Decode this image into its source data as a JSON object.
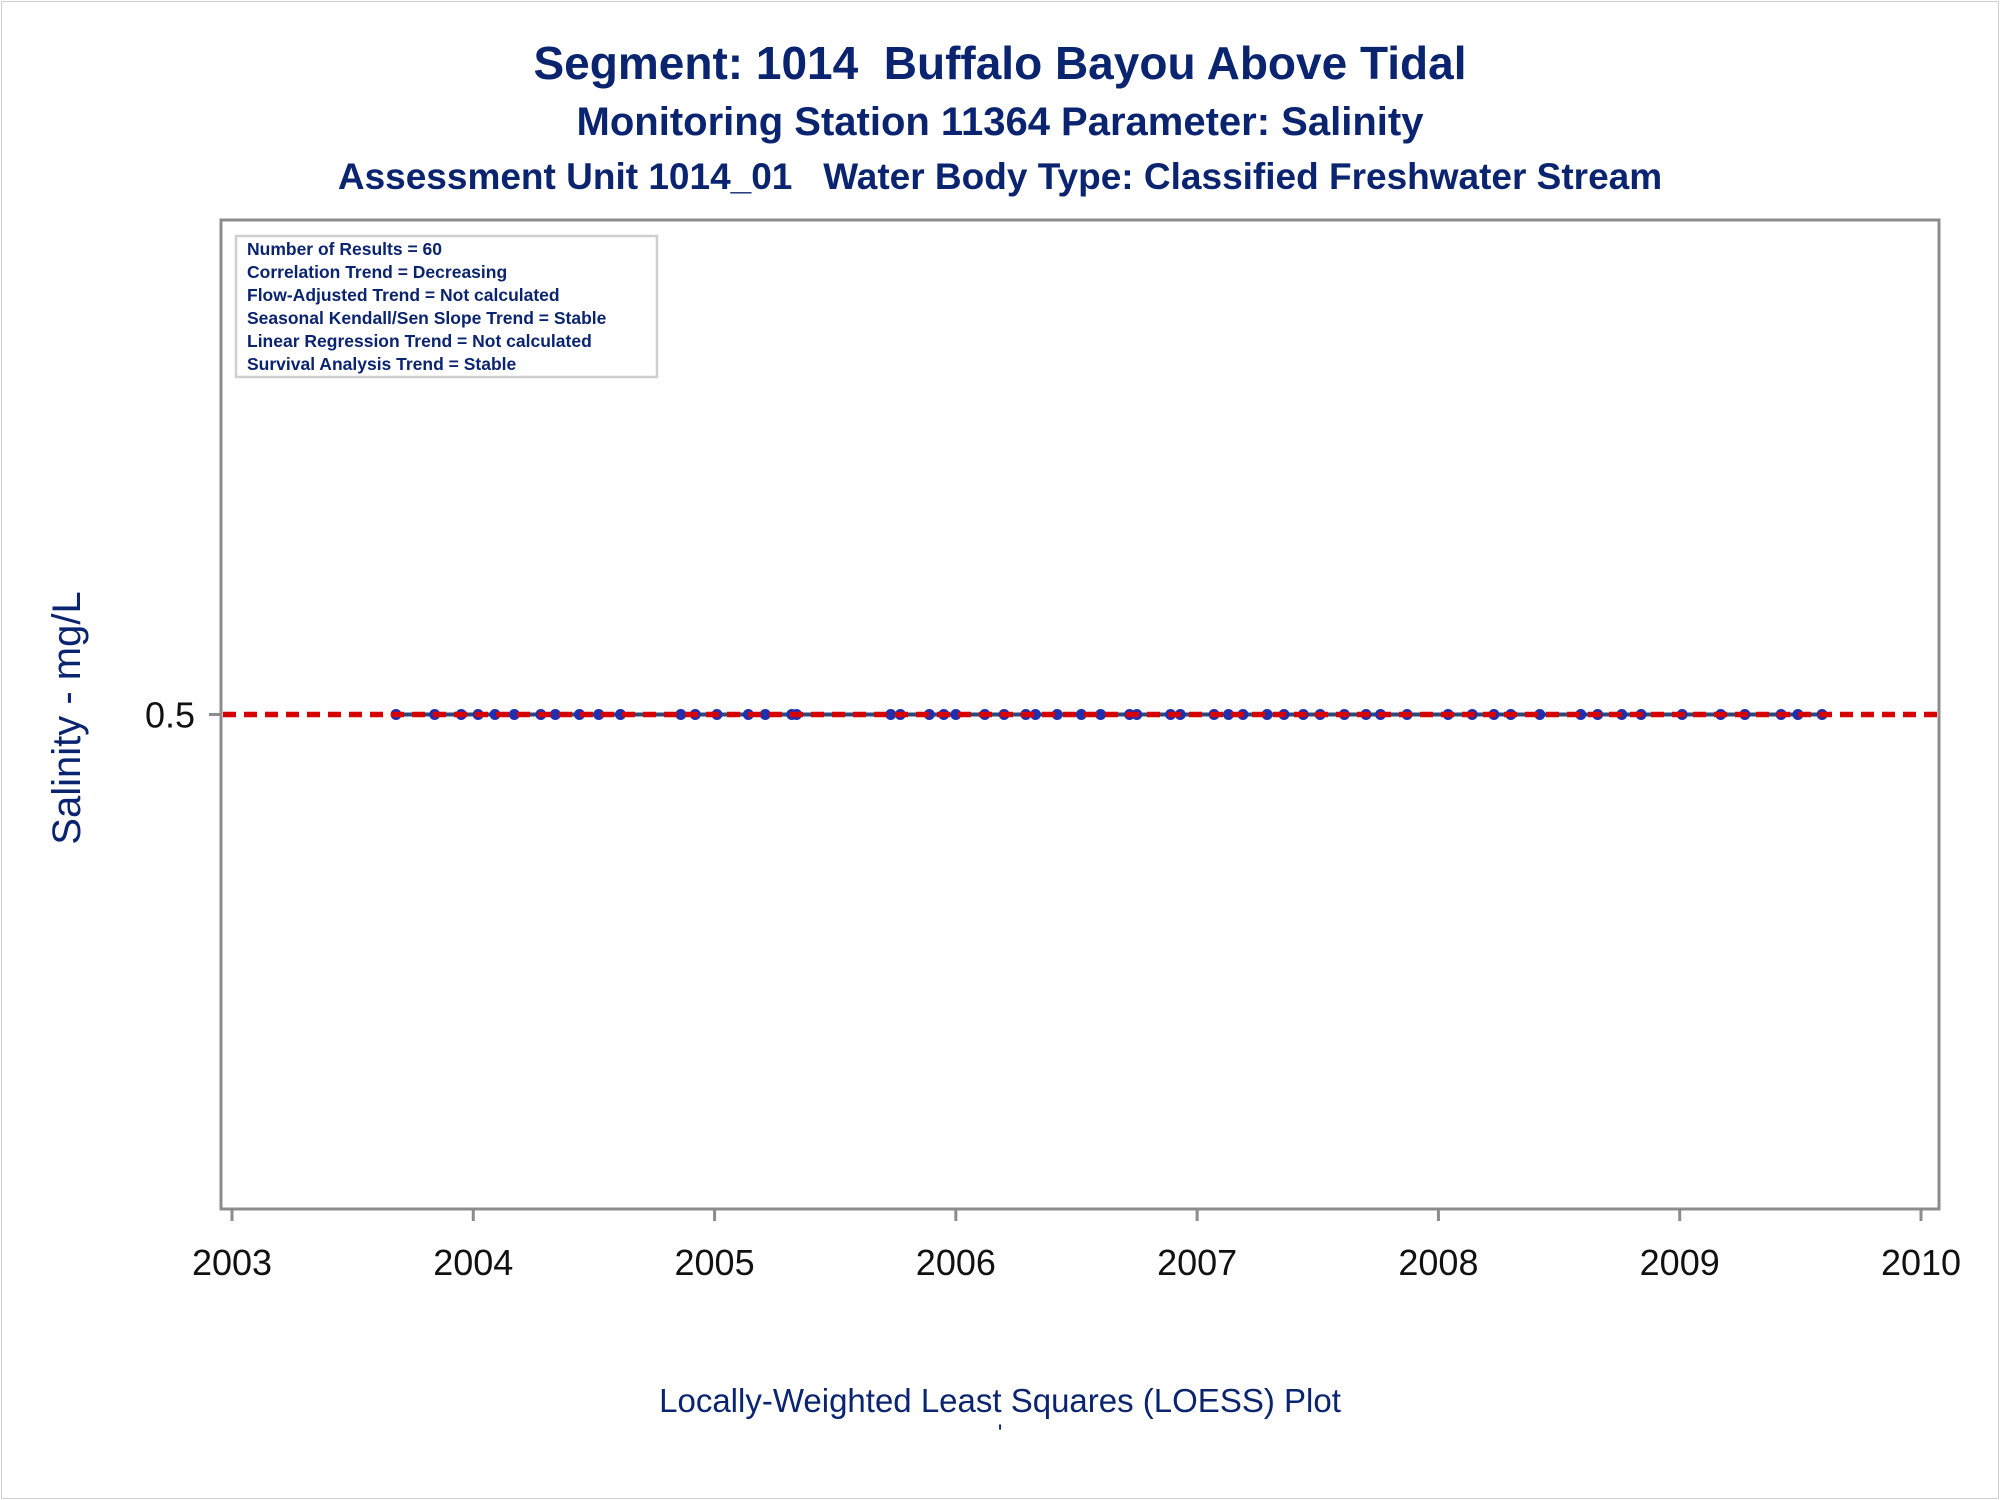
{
  "titles": {
    "line1": "Segment: 1014  Buffalo Bayou Above Tidal",
    "line2": "Monitoring Station 11364 Parameter: Salinity",
    "line3": "Assessment Unit 1014_01   Water Body Type: Classified Freshwater Stream"
  },
  "footnotes": {
    "line1": "Locally-Weighted Least Squares (LOESS) Plot",
    "line2": "'"
  },
  "colors": {
    "text": "#0b2470",
    "points": "#1f2fb0",
    "loess_line": "#2a4a7a",
    "reference_line": "#d60000",
    "frame": "#8c8c8c"
  },
  "chart_data": {
    "type": "scatter",
    "title": "Segment: 1014  Buffalo Bayou Above Tidal",
    "xlabel": "",
    "ylabel": "Salinity - mg/L",
    "xlim": [
      2003,
      2010
    ],
    "x_ticks": [
      "2003",
      "2004",
      "2005",
      "2006",
      "2007",
      "2008",
      "2009",
      "2010"
    ],
    "y_ticks": [
      "0.5"
    ],
    "y_tick_values": [
      0.5
    ],
    "ylim": [
      0.0,
      1.0
    ],
    "grid": false,
    "legend_placement": "top-left",
    "stats_box": [
      "Number of Results = 60",
      "Correlation Trend = Decreasing",
      "Flow-Adjusted Trend = Not calculated",
      "Seasonal Kendall/Sen Slope Trend = Stable",
      "Linear Regression Trend = Not calculated",
      "Survival Analysis Trend = Stable"
    ],
    "reference_line": {
      "y": 0.5,
      "style": "dashed",
      "color": "#d60000"
    },
    "loess_line": {
      "y": 0.5
    },
    "series": [
      {
        "marker": "dot",
        "x": [
          2003.68,
          2003.84,
          2003.95,
          2004.02,
          2004.09,
          2004.17,
          2004.28,
          2004.34,
          2004.44,
          2004.52,
          2004.61,
          2004.86,
          2004.92,
          2005.01,
          2005.14,
          2005.21,
          2005.32,
          2005.34,
          2005.73,
          2005.77,
          2005.89,
          2005.95,
          2006.0,
          2006.12,
          2006.2,
          2006.29,
          2006.33,
          2006.42,
          2006.52,
          2006.6,
          2006.72,
          2006.75,
          2006.89,
          2006.93,
          2007.07,
          2007.13,
          2007.19,
          2007.29,
          2007.36,
          2007.44,
          2007.51,
          2007.61,
          2007.7,
          2007.76,
          2007.87,
          2008.04,
          2008.14,
          2008.23,
          2008.3,
          2008.42,
          2008.59,
          2008.66,
          2008.76,
          2008.84,
          2009.01,
          2009.17,
          2009.27,
          2009.42,
          2009.49,
          2009.59
        ],
        "y": [
          0.5,
          0.5,
          0.5,
          0.5,
          0.5,
          0.5,
          0.5,
          0.5,
          0.5,
          0.5,
          0.5,
          0.5,
          0.5,
          0.5,
          0.5,
          0.5,
          0.5,
          0.5,
          0.5,
          0.5,
          0.5,
          0.5,
          0.5,
          0.5,
          0.5,
          0.5,
          0.5,
          0.5,
          0.5,
          0.5,
          0.5,
          0.5,
          0.5,
          0.5,
          0.5,
          0.5,
          0.5,
          0.5,
          0.5,
          0.5,
          0.5,
          0.5,
          0.5,
          0.5,
          0.5,
          0.5,
          0.5,
          0.5,
          0.5,
          0.5,
          0.5,
          0.5,
          0.5,
          0.5,
          0.5,
          0.5,
          0.5,
          0.5,
          0.5,
          0.5
        ]
      }
    ]
  }
}
